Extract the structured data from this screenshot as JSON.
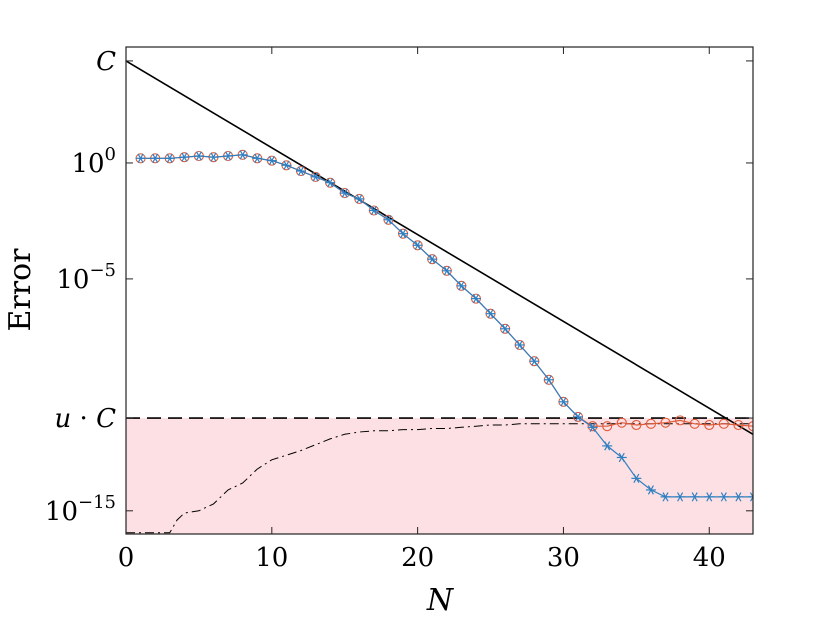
{
  "chart_data": {
    "type": "line",
    "xlabel": "N",
    "ylabel": "Error",
    "yscale": "log10",
    "xlim": [
      0,
      43
    ],
    "ylim": [
      -16.0,
      5.0
    ],
    "grid": false,
    "legend": "none",
    "x_ticks": [
      0,
      10,
      20,
      30,
      40
    ],
    "y_ticks": [
      {
        "value": 4.4,
        "label": "C"
      },
      {
        "value": 0,
        "base": "10",
        "exp": "0"
      },
      {
        "value": -5,
        "base": "10",
        "exp": "−5"
      },
      {
        "value": -11.0,
        "label": "u · C"
      },
      {
        "value": -15,
        "base": "10",
        "exp": "−15"
      }
    ],
    "shaded_region": {
      "y_from": -16.0,
      "y_to": -11.0,
      "color": "#fde0e3"
    },
    "reference_lines": [
      {
        "style": "solid",
        "color": "#000000",
        "x": [
          0,
          43
        ],
        "y": [
          4.4,
          -11.7
        ]
      },
      {
        "style": "dashed",
        "color": "#000000",
        "x": [
          0,
          43
        ],
        "y": [
          -11.0,
          -11.0
        ]
      }
    ],
    "series": [
      {
        "style": "line-circles",
        "color": "#e05a3a",
        "x": [
          1,
          2,
          3,
          4,
          5,
          6,
          7,
          8,
          9,
          10,
          11,
          12,
          13,
          14,
          15,
          16,
          17,
          18,
          19,
          20,
          21,
          22,
          23,
          24,
          25,
          26,
          27,
          28,
          29,
          30,
          31,
          32,
          33,
          34,
          35,
          36,
          37,
          38,
          39,
          40,
          41,
          42,
          43
        ],
        "y": [
          0.2,
          0.2,
          0.2,
          0.25,
          0.3,
          0.25,
          0.3,
          0.35,
          0.2,
          0.1,
          -0.1,
          -0.35,
          -0.6,
          -0.85,
          -1.3,
          -1.55,
          -2.05,
          -2.45,
          -3.05,
          -3.55,
          -4.15,
          -4.65,
          -5.3,
          -5.85,
          -6.5,
          -7.15,
          -7.85,
          -8.55,
          -9.35,
          -10.3,
          -10.95,
          -11.35,
          -11.35,
          -11.2,
          -11.3,
          -11.25,
          -11.2,
          -11.1,
          -11.25,
          -11.3,
          -11.25,
          -11.3,
          -11.35
        ]
      },
      {
        "style": "line-asterisks",
        "color": "#2f7fc1",
        "x": [
          1,
          2,
          3,
          4,
          5,
          6,
          7,
          8,
          9,
          10,
          11,
          12,
          13,
          14,
          15,
          16,
          17,
          18,
          19,
          20,
          21,
          22,
          23,
          24,
          25,
          26,
          27,
          28,
          29,
          30,
          31,
          32,
          33,
          34,
          35,
          36,
          37,
          38,
          39,
          40,
          41,
          42,
          43
        ],
        "y": [
          0.2,
          0.2,
          0.2,
          0.25,
          0.3,
          0.25,
          0.3,
          0.35,
          0.2,
          0.1,
          -0.1,
          -0.35,
          -0.6,
          -0.85,
          -1.3,
          -1.55,
          -2.05,
          -2.45,
          -3.05,
          -3.55,
          -4.15,
          -4.65,
          -5.3,
          -5.85,
          -6.5,
          -7.15,
          -7.85,
          -8.55,
          -9.35,
          -10.3,
          -10.95,
          -11.4,
          -12.2,
          -12.7,
          -13.6,
          -14.1,
          -14.4,
          -14.4,
          -14.4,
          -14.4,
          -14.4,
          -14.4,
          -14.4
        ]
      },
      {
        "style": "dash-dot",
        "color": "#000000",
        "x": [
          0,
          1,
          2,
          3,
          3.5,
          4,
          5,
          6,
          7,
          8,
          9,
          10,
          11,
          12,
          13,
          14,
          15,
          16,
          17,
          18,
          19,
          20,
          21,
          22,
          23,
          24,
          25,
          26,
          27,
          28,
          29,
          30,
          31,
          32,
          33,
          34,
          35,
          36,
          37,
          38,
          39,
          40,
          41,
          42,
          43
        ],
        "y": [
          -15.95,
          -15.95,
          -15.95,
          -15.95,
          -15.4,
          -15.1,
          -15.0,
          -14.7,
          -14.1,
          -13.8,
          -13.2,
          -12.8,
          -12.6,
          -12.4,
          -12.15,
          -11.9,
          -11.7,
          -11.6,
          -11.55,
          -11.55,
          -11.5,
          -11.5,
          -11.45,
          -11.45,
          -11.4,
          -11.35,
          -11.3,
          -11.3,
          -11.25,
          -11.25,
          -11.25,
          -11.25,
          -11.25,
          -11.25,
          -11.25,
          -11.25,
          -11.25,
          -11.25,
          -11.25,
          -11.25,
          -11.25,
          -11.25,
          -11.25,
          -11.25,
          -11.25
        ]
      }
    ]
  }
}
